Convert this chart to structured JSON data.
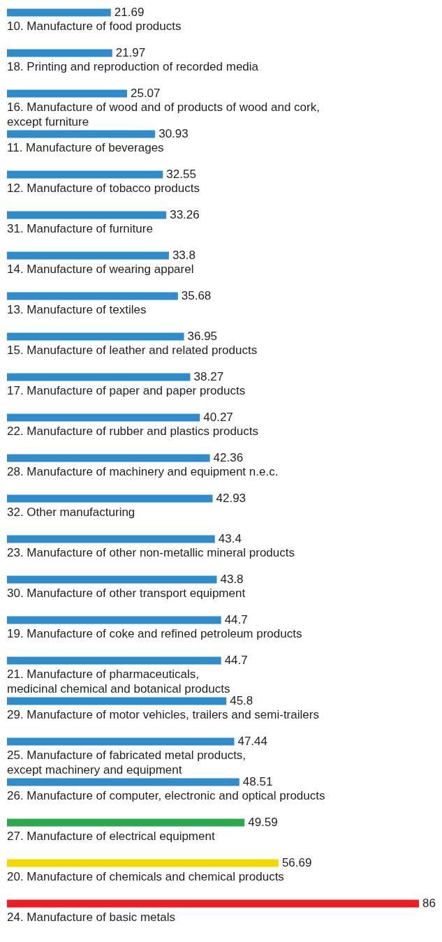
{
  "chart_data": {
    "type": "bar",
    "orientation": "horizontal",
    "data_labels": true,
    "categories": [
      "10. Manufacture of food products",
      "18. Printing and reproduction of recorded media",
      "16. Manufacture of wood and of products of wood and cork,\nexcept furniture",
      "11. Manufacture of beverages",
      "12. Manufacture of tobacco products",
      "31. Manufacture of furniture",
      "14. Manufacture of wearing apparel",
      "13. Manufacture of textiles",
      "15. Manufacture of leather and related products",
      "17. Manufacture of paper and paper products",
      "22. Manufacture of rubber and plastics products",
      "28. Manufacture of machinery and equipment n.e.c.",
      "32. Other manufacturing",
      "23. Manufacture of other non-metallic mineral products",
      "30. Manufacture of other transport equipment",
      "19. Manufacture of coke and refined petroleum products",
      "21. Manufacture of pharmaceuticals,\nmedicinal chemical and botanical products",
      "29. Manufacture of motor vehicles, trailers and semi-trailers",
      "25. Manufacture of fabricated metal products,\nexcept machinery and equipment",
      "26. Manufacture of computer, electronic and optical products",
      "27. Manufacture of electrical equipment",
      "20. Manufacture of chemicals and chemical products",
      "24. Manufacture of basic metals"
    ],
    "values": [
      21.69,
      21.97,
      25.07,
      30.93,
      32.55,
      33.26,
      33.8,
      35.68,
      36.95,
      38.27,
      40.27,
      42.36,
      42.93,
      43.4,
      43.8,
      44.7,
      44.7,
      45.8,
      47.44,
      48.51,
      49.59,
      56.69,
      86
    ],
    "colors": [
      "#2e8bcc",
      "#2e8bcc",
      "#2e8bcc",
      "#2e8bcc",
      "#2e8bcc",
      "#2e8bcc",
      "#2e8bcc",
      "#2e8bcc",
      "#2e8bcc",
      "#2e8bcc",
      "#2e8bcc",
      "#2e8bcc",
      "#2e8bcc",
      "#2e8bcc",
      "#2e8bcc",
      "#2e8bcc",
      "#2e8bcc",
      "#2e8bcc",
      "#2e8bcc",
      "#2e8bcc",
      "#2aaa4a",
      "#f5d800",
      "#ee1c24"
    ]
  }
}
